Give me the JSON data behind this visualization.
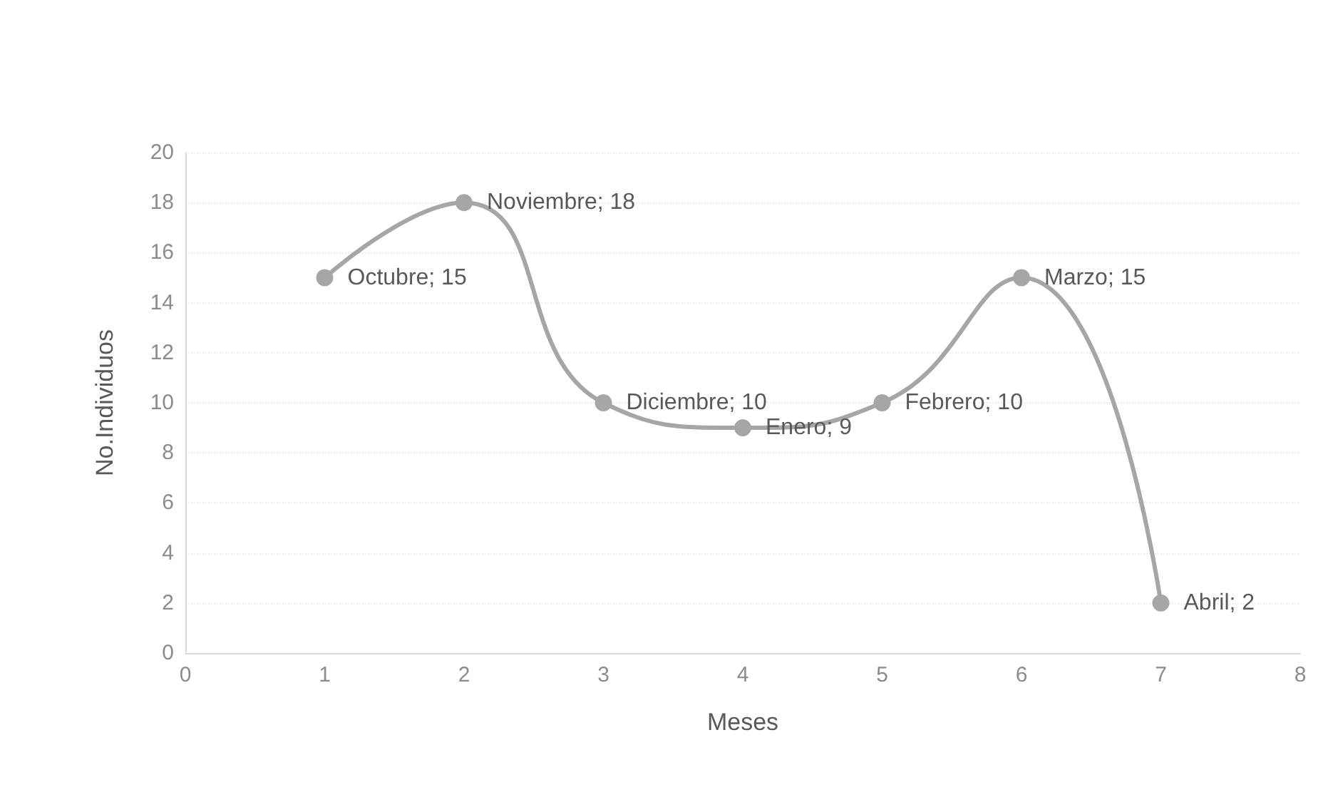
{
  "chart_data": {
    "type": "line",
    "xlabel": "Meses",
    "ylabel": "No.Individuos",
    "x": [
      1,
      2,
      3,
      4,
      5,
      6,
      7
    ],
    "series": [
      {
        "color": "#a6a6a6",
        "values": [
          15,
          18,
          10,
          9,
          10,
          15,
          2
        ],
        "value_labels": [
          "Octubre; 15",
          "Noviembre; 18",
          "Diciembre; 10",
          "Enero; 9",
          "Febrero; 10",
          "Marzo; 15",
          "Abril; 2"
        ]
      }
    ],
    "xlim": [
      0,
      8
    ],
    "xticks": [
      0,
      1,
      2,
      3,
      4,
      5,
      6,
      7,
      8
    ],
    "ylim": [
      0,
      20
    ],
    "yticks": [
      0,
      2,
      4,
      6,
      8,
      10,
      12,
      14,
      16,
      18,
      20
    ],
    "grid": "y",
    "marker": "circle",
    "line_style": "solid"
  }
}
